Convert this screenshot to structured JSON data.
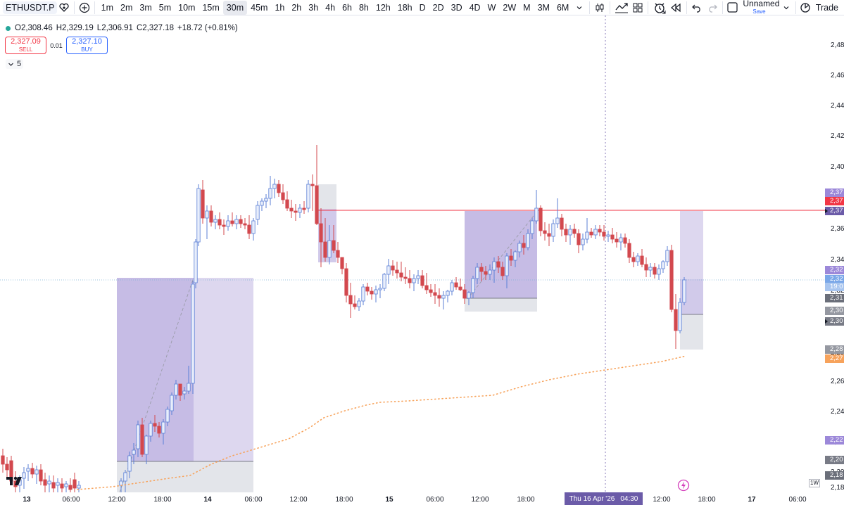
{
  "toolbar": {
    "symbol": "ETHUSDT.P",
    "intervals": [
      "1m",
      "2m",
      "3m",
      "5m",
      "10m",
      "15m",
      "30m",
      "45m",
      "1h",
      "2h",
      "3h",
      "4h",
      "6h",
      "8h",
      "12h",
      "18h",
      "D",
      "2D",
      "3D",
      "4D",
      "W",
      "2W",
      "M",
      "3M",
      "6M"
    ],
    "active_interval": "30m",
    "layout_name": "Unnamed",
    "save_label": "Save",
    "trade_label": "Trade",
    "icons": [
      "favorite-icon",
      "add-compare-icon",
      "chart-type-icon",
      "indicators-icon",
      "layout-grid-icon",
      "alert-icon",
      "replay-icon",
      "undo-icon",
      "redo-icon",
      "fullscreen-icon",
      "chevron-down-icon",
      "quick-search-icon"
    ]
  },
  "legend": {
    "open": "O2,308.46",
    "high": "H2,329.19",
    "low": "L2,306.91",
    "close": "C2,327.18",
    "change": "+18.72 (+0.81%)",
    "collapse_count": "5"
  },
  "trade": {
    "sell_price": "2,327.09",
    "sell_label": "SELL",
    "spread": "0.01",
    "buy_price": "2,327.10",
    "buy_label": "BUY"
  },
  "colors": {
    "up": "#26a69a",
    "down": "#ef5350",
    "zone_purple": "#b3a6dc",
    "zone_grey": "#d1d4dc",
    "vwap": "#f7a35c",
    "alert_line": "#f23645"
  },
  "price_axis": {
    "labels": [
      "2,48",
      "2,46",
      "2,44",
      "2,42",
      "2,40",
      "2,38",
      "2,36",
      "2,34",
      "2,32",
      "2,30",
      "2,28",
      "2,26",
      "2,24",
      "2,22",
      "2,20",
      "2,18"
    ],
    "tags": [
      {
        "text": "2,37",
        "color": "#9c88d9"
      },
      {
        "text": "2,37",
        "color": "#f23645"
      },
      {
        "text": "2,37",
        "color": "#6b5ba8"
      },
      {
        "text": "2,32",
        "color": "#9c88d9"
      },
      {
        "text": "2,32",
        "color": "#7aa7e8"
      },
      {
        "text": "19:0",
        "color": "#a8c5ef"
      },
      {
        "text": "2,31",
        "color": "#6b6f7a"
      },
      {
        "text": "2,30",
        "color": "#9598a1"
      },
      {
        "text": "2,30",
        "color": "#787b86"
      },
      {
        "text": "2,28",
        "color": "#9598a1"
      },
      {
        "text": "2,27",
        "color": "#f7a35c"
      },
      {
        "text": "2,22",
        "color": "#9c88d9"
      },
      {
        "text": "2,20",
        "color": "#787b86"
      },
      {
        "text": "2,18",
        "color": "#6b6f7a"
      }
    ]
  },
  "time_axis": {
    "labels": [
      "13",
      "06:00",
      "12:00",
      "18:00",
      "14",
      "06:00",
      "12:00",
      "18:00",
      "15",
      "06:00",
      "12:00",
      "18:00",
      "12:00",
      "18:00",
      "17",
      "06:00"
    ],
    "crosshair_date": "Thu 16 Apr '26",
    "crosshair_time": "04:30",
    "timezone_label": "1W"
  }
}
